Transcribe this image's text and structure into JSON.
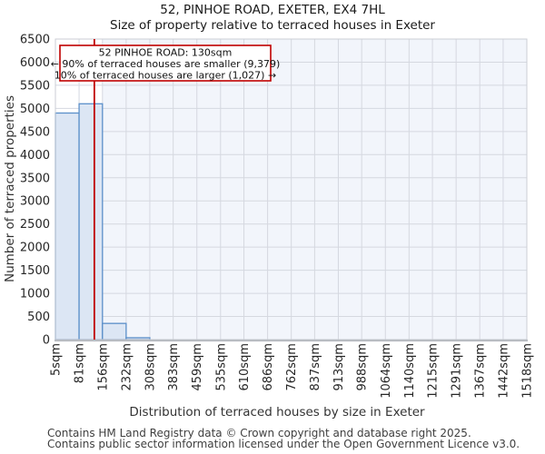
{
  "title": "52, PINHOE ROAD, EXETER, EX4 7HL",
  "subtitle": "Size of property relative to terraced houses in Exeter",
  "annotation": {
    "line1": "52 PINHOE ROAD: 130sqm",
    "line2": "← 90% of terraced houses are smaller (9,379)",
    "line3": "10% of terraced houses are larger (1,027) →"
  },
  "footer": {
    "line1": "Contains HM Land Registry data © Crown copyright and database right 2025.",
    "line2": "Contains public sector information licensed under the Open Government Licence v3.0."
  },
  "chart_data": {
    "type": "bar",
    "title": "52, PINHOE ROAD, EXETER, EX4 7HL",
    "subtitle": "Size of property relative to terraced houses in Exeter",
    "xlabel": "Distribution of terraced houses by size in Exeter",
    "ylabel": "Number of terraced properties",
    "bin_edges_sqm": [
      5,
      81,
      156,
      232,
      308,
      383,
      459,
      535,
      610,
      686,
      762,
      837,
      913,
      988,
      1064,
      1140,
      1215,
      1291,
      1367,
      1442,
      1518
    ],
    "x_tick_labels": [
      "5sqm",
      "81sqm",
      "156sqm",
      "232sqm",
      "308sqm",
      "383sqm",
      "459sqm",
      "535sqm",
      "610sqm",
      "686sqm",
      "762sqm",
      "837sqm",
      "913sqm",
      "988sqm",
      "1064sqm",
      "1140sqm",
      "1215sqm",
      "1291sqm",
      "1367sqm",
      "1442sqm",
      "1518sqm"
    ],
    "values": [
      4900,
      5100,
      350,
      40,
      0,
      0,
      0,
      0,
      0,
      0,
      0,
      0,
      0,
      0,
      0,
      0,
      0,
      0,
      0,
      0
    ],
    "ylim": [
      0,
      6500
    ],
    "ytick_step": 500,
    "grid": true,
    "marker_sqm": 130,
    "shaded_from_sqm": 156,
    "smaller_pct": "90%",
    "smaller_count": "9,379",
    "larger_pct": "10%",
    "larger_count": "1,027",
    "colors": {
      "bar_fill": "#dce6f4",
      "bar_edge": "#5b8fc9",
      "marker_red": "#c00000",
      "annotation_border": "#c00000",
      "shade": "#f2f5fb",
      "grid": "#d5d8e0",
      "spine": "#cbced4",
      "bottom_spine": "#b8bcc2"
    }
  }
}
